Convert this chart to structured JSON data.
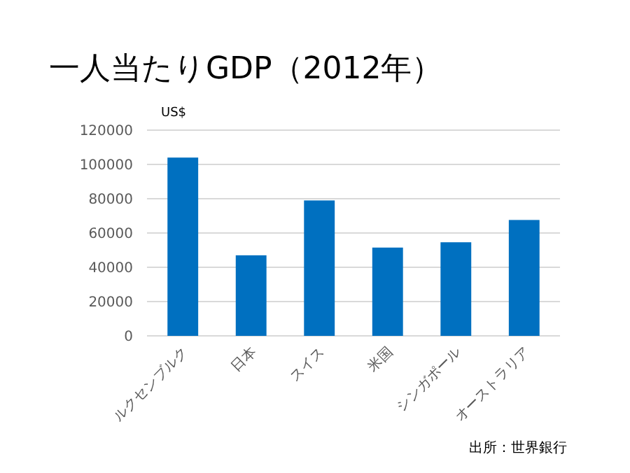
{
  "chart_data": {
    "type": "bar",
    "title": "一人当たりGDP（2012年）",
    "ylabel": "US$",
    "categories": [
      "ルクセンブルク",
      "日本",
      "スイス",
      "米国",
      "シンガポール",
      "オーストラリア"
    ],
    "values": [
      104000,
      47000,
      79000,
      51500,
      54600,
      67600
    ],
    "color": "#0070c0",
    "ylim": [
      0,
      120000
    ],
    "yticks": [
      0,
      20000,
      40000,
      60000,
      80000,
      100000,
      120000
    ],
    "grid": "y",
    "annotations": [
      "出所：世界銀行"
    ]
  }
}
